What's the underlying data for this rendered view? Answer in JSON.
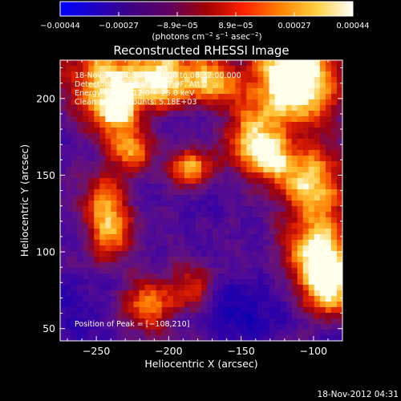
{
  "colorbar": {
    "ticks": [
      "−0.00044",
      "−0.00027",
      "−8.9e−05",
      "8.9e−05",
      "0.00027",
      "0.00044"
    ],
    "unit_parts": [
      "(photons cm",
      "−2",
      " s",
      "−1",
      " asec",
      "−2",
      ")"
    ],
    "colors": [
      "#0000ff",
      "#2000c0",
      "#400080",
      "#600060",
      "#a00000",
      "#ff2000",
      "#ff8000",
      "#ffd040",
      "#ffffff"
    ]
  },
  "chart_data": {
    "type": "heatmap",
    "title": "Reconstructed RHESSI Image",
    "xlabel": "Heliocentric X (arcsec)",
    "ylabel": "Heliocentric Y (arcsec)",
    "xlim": [
      -275,
      -80
    ],
    "ylim": [
      42,
      225
    ],
    "x_ticks": [
      -250,
      -200,
      -150,
      -100
    ],
    "y_ticks": [
      50,
      100,
      150,
      200
    ],
    "x_tick_labels": [
      "−250",
      "−200",
      "−150",
      "−100"
    ],
    "y_tick_labels": [
      "50",
      "100",
      "150",
      "200"
    ],
    "peak_position": [
      -108,
      210
    ],
    "annotations": [
      "18-Nov-2012 08:29:28.000 to 08:32:00.000",
      "Detectors: 3F 5F 6F 7F 8F 9F, Att 0",
      "Energy Range: 12.0 − 25.0 keV",
      "Clean     Total counts: 5.18E+03"
    ],
    "peak_label": "Position of Peak = [−108,210]"
  },
  "footer": {
    "timestamp": "18-Nov-2012 04:31"
  }
}
